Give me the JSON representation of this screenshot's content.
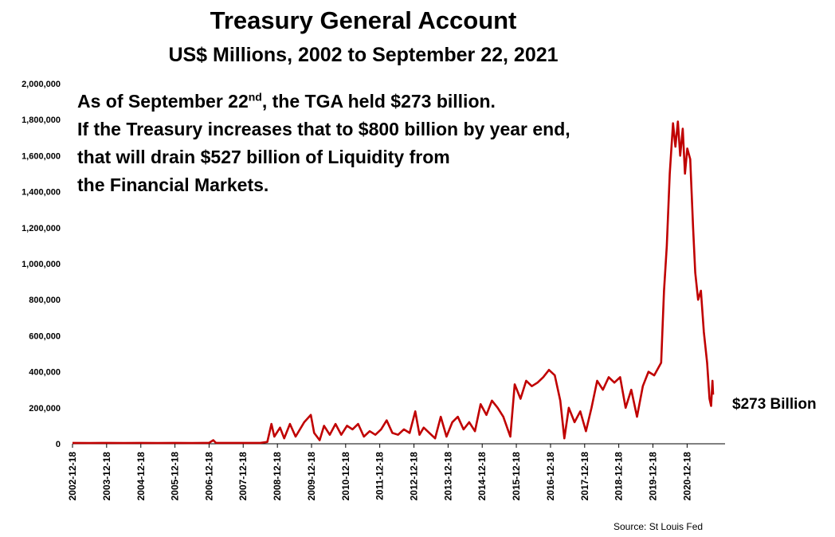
{
  "chart_data": {
    "type": "line",
    "title": "Treasury General Account",
    "subtitle": "US$ Millions, 2002 to September 22, 2021",
    "xlabel": "",
    "ylabel": "",
    "ylim": [
      0,
      2000000
    ],
    "grid": false,
    "legend": "none",
    "y_ticks": [
      "0",
      "200,000",
      "400,000",
      "600,000",
      "800,000",
      "1,000,000",
      "1,200,000",
      "1,400,000",
      "1,600,000",
      "1,800,000",
      "2,000,000"
    ],
    "x_ticks": [
      "2002-12-18",
      "2003-12-18",
      "2004-12-18",
      "2005-12-18",
      "2006-12-18",
      "2007-12-18",
      "2008-12-18",
      "2009-12-18",
      "2010-12-18",
      "2011-12-18",
      "2012-12-18",
      "2013-12-18",
      "2014-12-18",
      "2015-12-18",
      "2016-12-18",
      "2017-12-18",
      "2018-12-18",
      "2019-12-18",
      "2020-12-18"
    ],
    "series": [
      {
        "color": "#c00000",
        "points": [
          [
            "2002-12-18",
            5000
          ],
          [
            "2003-06-18",
            4000
          ],
          [
            "2003-12-18",
            5000
          ],
          [
            "2004-06-18",
            4000
          ],
          [
            "2004-12-18",
            5000
          ],
          [
            "2005-06-18",
            4000
          ],
          [
            "2005-12-18",
            5000
          ],
          [
            "2006-06-18",
            4000
          ],
          [
            "2006-12-18",
            5000
          ],
          [
            "2007-02-01",
            20000
          ],
          [
            "2007-03-01",
            5000
          ],
          [
            "2007-06-18",
            5000
          ],
          [
            "2007-12-18",
            5000
          ],
          [
            "2008-06-18",
            5000
          ],
          [
            "2008-09-01",
            10000
          ],
          [
            "2008-10-15",
            110000
          ],
          [
            "2008-11-15",
            40000
          ],
          [
            "2009-01-15",
            90000
          ],
          [
            "2009-03-01",
            30000
          ],
          [
            "2009-05-01",
            110000
          ],
          [
            "2009-07-01",
            40000
          ],
          [
            "2009-10-01",
            120000
          ],
          [
            "2009-12-10",
            160000
          ],
          [
            "2010-01-15",
            60000
          ],
          [
            "2010-03-15",
            20000
          ],
          [
            "2010-05-01",
            100000
          ],
          [
            "2010-07-01",
            50000
          ],
          [
            "2010-09-01",
            110000
          ],
          [
            "2010-11-01",
            50000
          ],
          [
            "2011-01-01",
            100000
          ],
          [
            "2011-03-01",
            80000
          ],
          [
            "2011-05-01",
            110000
          ],
          [
            "2011-07-01",
            40000
          ],
          [
            "2011-09-01",
            70000
          ],
          [
            "2011-11-01",
            50000
          ],
          [
            "2012-01-01",
            80000
          ],
          [
            "2012-03-01",
            130000
          ],
          [
            "2012-05-01",
            60000
          ],
          [
            "2012-07-01",
            50000
          ],
          [
            "2012-09-01",
            80000
          ],
          [
            "2012-11-01",
            60000
          ],
          [
            "2013-01-01",
            180000
          ],
          [
            "2013-02-15",
            50000
          ],
          [
            "2013-04-01",
            90000
          ],
          [
            "2013-06-01",
            60000
          ],
          [
            "2013-08-01",
            30000
          ],
          [
            "2013-10-01",
            150000
          ],
          [
            "2013-12-01",
            40000
          ],
          [
            "2014-02-01",
            120000
          ],
          [
            "2014-04-01",
            150000
          ],
          [
            "2014-06-01",
            80000
          ],
          [
            "2014-08-01",
            120000
          ],
          [
            "2014-10-01",
            70000
          ],
          [
            "2014-12-01",
            220000
          ],
          [
            "2015-02-01",
            160000
          ],
          [
            "2015-04-01",
            240000
          ],
          [
            "2015-06-01",
            200000
          ],
          [
            "2015-08-01",
            150000
          ],
          [
            "2015-10-15",
            40000
          ],
          [
            "2015-12-01",
            330000
          ],
          [
            "2016-02-01",
            250000
          ],
          [
            "2016-04-01",
            350000
          ],
          [
            "2016-06-01",
            320000
          ],
          [
            "2016-08-01",
            340000
          ],
          [
            "2016-10-01",
            370000
          ],
          [
            "2016-12-01",
            410000
          ],
          [
            "2017-02-01",
            380000
          ],
          [
            "2017-04-01",
            240000
          ],
          [
            "2017-05-15",
            30000
          ],
          [
            "2017-07-01",
            200000
          ],
          [
            "2017-09-01",
            120000
          ],
          [
            "2017-11-01",
            180000
          ],
          [
            "2018-01-01",
            70000
          ],
          [
            "2018-03-01",
            200000
          ],
          [
            "2018-05-01",
            350000
          ],
          [
            "2018-07-01",
            300000
          ],
          [
            "2018-09-01",
            370000
          ],
          [
            "2018-11-01",
            340000
          ],
          [
            "2019-01-01",
            370000
          ],
          [
            "2019-03-01",
            200000
          ],
          [
            "2019-05-01",
            300000
          ],
          [
            "2019-07-01",
            150000
          ],
          [
            "2019-09-01",
            320000
          ],
          [
            "2019-11-01",
            400000
          ],
          [
            "2020-01-01",
            380000
          ],
          [
            "2020-03-15",
            450000
          ],
          [
            "2020-04-15",
            850000
          ],
          [
            "2020-05-15",
            1100000
          ],
          [
            "2020-06-15",
            1500000
          ],
          [
            "2020-07-20",
            1780000
          ],
          [
            "2020-08-15",
            1650000
          ],
          [
            "2020-09-10",
            1790000
          ],
          [
            "2020-10-05",
            1600000
          ],
          [
            "2020-11-01",
            1750000
          ],
          [
            "2020-11-25",
            1500000
          ],
          [
            "2020-12-20",
            1640000
          ],
          [
            "2021-01-20",
            1580000
          ],
          [
            "2021-02-20",
            1200000
          ],
          [
            "2021-03-15",
            950000
          ],
          [
            "2021-04-15",
            800000
          ],
          [
            "2021-05-15",
            850000
          ],
          [
            "2021-06-15",
            620000
          ],
          [
            "2021-07-20",
            450000
          ],
          [
            "2021-08-15",
            250000
          ],
          [
            "2021-09-01",
            210000
          ],
          [
            "2021-09-15",
            350000
          ],
          [
            "2021-09-22",
            273000
          ]
        ]
      }
    ],
    "end_label": "$273 Billion"
  },
  "annotation": {
    "line1_pre": "As of September 22",
    "line1_sup": "nd",
    "line1_post": ", the TGA held $273 billion.",
    "line2": "If the Treasury increases that to $800 billion by year end,",
    "line3": "that will drain $527 billion of Liquidity from",
    "line4": "the Financial Markets."
  },
  "source": "Source: St Louis Fed"
}
